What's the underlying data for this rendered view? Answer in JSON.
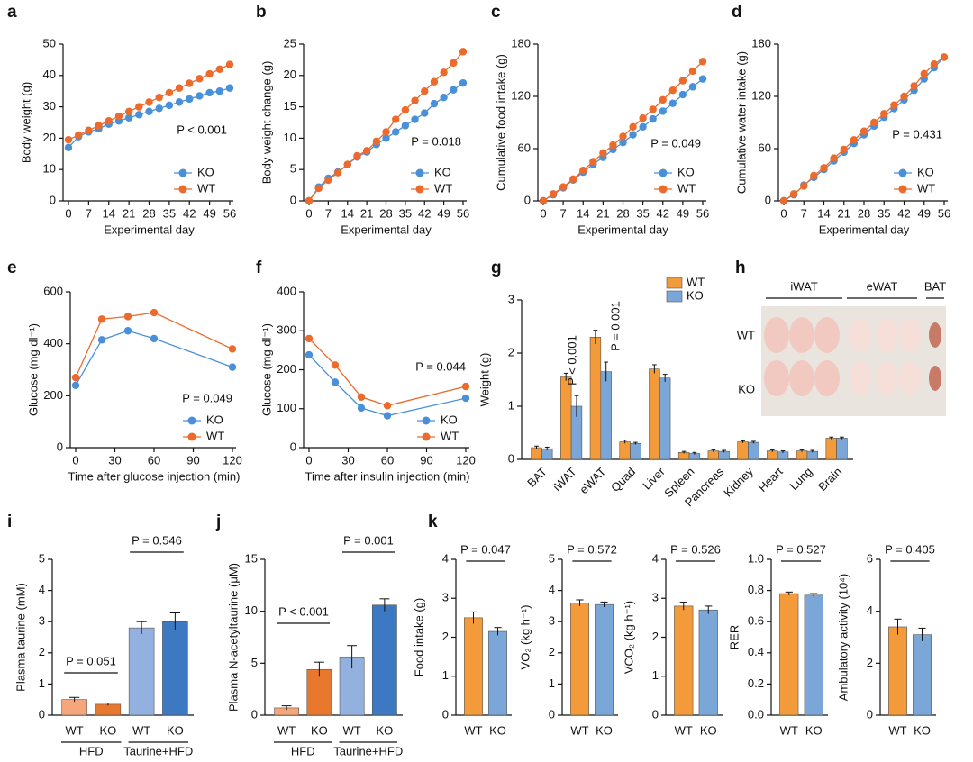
{
  "chart_data": [
    {
      "type": "line",
      "panel": "a",
      "xlabel": "Experimental day",
      "ylabel": "Body weight (g)",
      "annotation": "P < 0.001",
      "x": [
        0,
        3.5,
        7,
        10.5,
        14,
        17.5,
        21,
        24.5,
        28,
        31.5,
        35,
        38.5,
        42,
        45.5,
        49,
        52.5,
        56
      ],
      "xlim": [
        0,
        56
      ],
      "xticks": [
        0,
        7,
        14,
        21,
        28,
        35,
        42,
        49,
        56
      ],
      "ylim": [
        0,
        50
      ],
      "yticks": [
        0,
        10,
        20,
        30,
        40,
        50
      ],
      "legend": "lower right",
      "series": [
        {
          "name": "KO",
          "color": "#4a90d9",
          "values": [
            17,
            20.5,
            22,
            23,
            24.5,
            25.5,
            26.5,
            27.5,
            28.5,
            29.5,
            30.5,
            31.5,
            32.5,
            33.5,
            34.5,
            35,
            36
          ]
        },
        {
          "name": "WT",
          "color": "#ec6a2c",
          "values": [
            19.5,
            21,
            22.5,
            24,
            25.5,
            27,
            28.5,
            30,
            31.5,
            33,
            34.5,
            36,
            37.5,
            39,
            40.5,
            42,
            43.5
          ]
        }
      ]
    },
    {
      "type": "line",
      "panel": "b",
      "xlabel": "Experimental day",
      "ylabel": "Body weight change (g)",
      "annotation": "P = 0.018",
      "x": [
        0,
        3.5,
        7,
        10.5,
        14,
        17.5,
        21,
        24.5,
        28,
        31.5,
        35,
        38.5,
        42,
        45.5,
        49,
        52.5,
        56
      ],
      "xlim": [
        0,
        56
      ],
      "xticks": [
        0,
        7,
        14,
        21,
        28,
        35,
        42,
        49,
        56
      ],
      "ylim": [
        0,
        25
      ],
      "yticks": [
        0,
        5,
        10,
        15,
        20,
        25
      ],
      "legend": "lower right",
      "series": [
        {
          "name": "KO",
          "color": "#4a90d9",
          "values": [
            0,
            2.2,
            3.6,
            4.6,
            5.8,
            7,
            7.8,
            9,
            10,
            11,
            12,
            13,
            14,
            15.5,
            16.5,
            17.7,
            18.8
          ]
        },
        {
          "name": "WT",
          "color": "#ec6a2c",
          "values": [
            0,
            2,
            3.3,
            4.5,
            5.8,
            7.2,
            8,
            9.5,
            11,
            13,
            14.5,
            16,
            17.5,
            19,
            20.5,
            22,
            23.8
          ]
        }
      ]
    },
    {
      "type": "line",
      "panel": "c",
      "xlabel": "Experimental day",
      "ylabel": "Cumulative food intake (g)",
      "annotation": "P = 0.049",
      "x": [
        0,
        3.5,
        7,
        10.5,
        14,
        17.5,
        21,
        24.5,
        28,
        31.5,
        35,
        38.5,
        42,
        45.5,
        49,
        52.5,
        56
      ],
      "xlim": [
        0,
        56
      ],
      "xticks": [
        0,
        7,
        14,
        21,
        28,
        35,
        42,
        49,
        56
      ],
      "ylim": [
        0,
        180
      ],
      "yticks": [
        0,
        60,
        120,
        180
      ],
      "legend": "lower right",
      "series": [
        {
          "name": "KO",
          "color": "#4a90d9",
          "values": [
            0,
            7,
            15,
            24,
            33,
            42,
            50,
            59,
            67,
            76,
            85,
            94,
            103,
            112,
            122,
            131,
            140
          ]
        },
        {
          "name": "WT",
          "color": "#ec6a2c",
          "values": [
            0,
            8,
            16,
            25,
            35,
            45,
            55,
            64,
            74,
            85,
            95,
            105,
            116,
            127,
            138,
            149,
            160
          ]
        }
      ]
    },
    {
      "type": "line",
      "panel": "d",
      "xlabel": "Experimental day",
      "ylabel": "Cumulative water intake (g)",
      "annotation": "P = 0.431",
      "x": [
        0,
        3.5,
        7,
        10.5,
        14,
        17.5,
        21,
        24.5,
        28,
        31.5,
        35,
        38.5,
        42,
        45.5,
        49,
        52.5,
        56
      ],
      "xlim": [
        0,
        56
      ],
      "xticks": [
        0,
        7,
        14,
        21,
        28,
        35,
        42,
        49,
        56
      ],
      "ylim": [
        0,
        180
      ],
      "yticks": [
        0,
        60,
        120,
        180
      ],
      "legend": "lower right",
      "series": [
        {
          "name": "KO",
          "color": "#4a90d9",
          "values": [
            0,
            7,
            18,
            27,
            36,
            46,
            56,
            66,
            76,
            86,
            96,
            106,
            116,
            127,
            140,
            153,
            165
          ]
        },
        {
          "name": "WT",
          "color": "#ec6a2c",
          "values": [
            0,
            8,
            17,
            29,
            38,
            49,
            59,
            70,
            80,
            90,
            100,
            110,
            120,
            132,
            146,
            157,
            165
          ]
        }
      ]
    },
    {
      "type": "line",
      "panel": "e",
      "xlabel": "Time after glucose injection (min)",
      "ylabel": "Glucose (mg dl⁻¹)",
      "annotation": "P = 0.049",
      "x": [
        0,
        20,
        40,
        60,
        120
      ],
      "xlim": [
        0,
        120
      ],
      "xticks": [
        0,
        30,
        60,
        90,
        120
      ],
      "ylim": [
        0,
        600
      ],
      "yticks": [
        0,
        200,
        400,
        600
      ],
      "legend": "lower right",
      "series": [
        {
          "name": "KO",
          "color": "#4a90d9",
          "values": [
            240,
            415,
            450,
            420,
            310
          ]
        },
        {
          "name": "WT",
          "color": "#ec6a2c",
          "values": [
            270,
            495,
            505,
            520,
            380
          ]
        }
      ]
    },
    {
      "type": "line",
      "panel": "f",
      "xlabel": "Time after insulin injection (min)",
      "ylabel": "Glucose (mg dl⁻¹)",
      "annotation": "P = 0.044",
      "x": [
        0,
        20,
        40,
        60,
        120
      ],
      "xlim": [
        0,
        120
      ],
      "xticks": [
        0,
        30,
        60,
        90,
        120
      ],
      "ylim": [
        0,
        400
      ],
      "yticks": [
        0,
        100,
        200,
        300,
        400
      ],
      "legend": "lower right",
      "series": [
        {
          "name": "KO",
          "color": "#4a90d9",
          "values": [
            238,
            168,
            102,
            82,
            127
          ]
        },
        {
          "name": "WT",
          "color": "#ec6a2c",
          "values": [
            280,
            212,
            130,
            108,
            157
          ]
        }
      ]
    },
    {
      "type": "bar",
      "panel": "g",
      "ylabel": "Weight (g)",
      "annotations": [
        "P < 0.001",
        "P = 0.001"
      ],
      "categories": [
        "BAT",
        "iWAT",
        "eWAT",
        "Quad",
        "Liver",
        "Spleen",
        "Pancreas",
        "Kidney",
        "Heart",
        "Lung",
        "Brain"
      ],
      "ylim": [
        0,
        3
      ],
      "yticks": [
        0,
        1,
        2,
        3
      ],
      "legend": "upper right",
      "series": [
        {
          "name": "WT",
          "color": "#f39a3a",
          "values": [
            0.22,
            1.55,
            2.3,
            0.33,
            1.7,
            0.13,
            0.16,
            0.33,
            0.16,
            0.16,
            0.4
          ],
          "errors": [
            0.03,
            0.07,
            0.13,
            0.03,
            0.08,
            0.02,
            0.02,
            0.02,
            0.02,
            0.02,
            0.02
          ]
        },
        {
          "name": "KO",
          "color": "#7aa6d8",
          "values": [
            0.2,
            1.0,
            1.65,
            0.3,
            1.53,
            0.11,
            0.15,
            0.32,
            0.14,
            0.15,
            0.4
          ],
          "errors": [
            0.03,
            0.2,
            0.18,
            0.02,
            0.07,
            0.02,
            0.02,
            0.02,
            0.02,
            0.02,
            0.02
          ]
        }
      ]
    },
    {
      "type": "image",
      "panel": "h",
      "column_labels": [
        "iWAT",
        "eWAT",
        "BAT"
      ],
      "row_labels": [
        "WT",
        "KO"
      ]
    },
    {
      "type": "bar",
      "panel": "i",
      "ylabel": "Plasma taurine (mM)",
      "annotations": [
        "P = 0.051",
        "P = 0.546"
      ],
      "categories": [
        "WT",
        "KO",
        "WT",
        "KO"
      ],
      "groups": [
        "HFD",
        "Taurine+HFD"
      ],
      "colors": [
        "#f6a67b",
        "#e9782f",
        "#92b1de",
        "#3d78c3"
      ],
      "values": [
        0.5,
        0.35,
        2.8,
        3.0
      ],
      "errors": [
        0.07,
        0.04,
        0.2,
        0.28
      ],
      "ylim": [
        0,
        5
      ],
      "yticks": [
        0,
        1,
        2,
        3,
        4,
        5
      ]
    },
    {
      "type": "bar",
      "panel": "j",
      "ylabel": "Plasma N-acetyltaurine (μM)",
      "annotations": [
        "P < 0.001",
        "P = 0.001"
      ],
      "categories": [
        "WT",
        "KO",
        "WT",
        "KO"
      ],
      "groups": [
        "HFD",
        "Taurine+HFD"
      ],
      "colors": [
        "#f6a67b",
        "#e9782f",
        "#92b1de",
        "#3d78c3"
      ],
      "values": [
        0.7,
        4.4,
        5.6,
        10.6
      ],
      "errors": [
        0.2,
        0.7,
        1.1,
        0.6
      ],
      "ylim": [
        0,
        15
      ],
      "yticks": [
        0,
        5,
        10,
        15
      ]
    },
    {
      "type": "bar",
      "panel": "k",
      "ylabel": "Food intake (g)",
      "annotations": [
        "P = 0.047"
      ],
      "categories": [
        "WT",
        "KO"
      ],
      "colors": [
        "#f39a3a",
        "#7aa6d8"
      ],
      "values": [
        2.5,
        2.15
      ],
      "errors": [
        0.15,
        0.1
      ],
      "ylim": [
        0,
        4
      ],
      "yticks": [
        0,
        1,
        2,
        3,
        4
      ]
    },
    {
      "type": "bar",
      "ylabel": "VO₂ (kg h⁻¹)",
      "annotations": [
        "P = 0.572"
      ],
      "categories": [
        "WT",
        "KO"
      ],
      "colors": [
        "#f39a3a",
        "#7aa6d8"
      ],
      "values": [
        3.6,
        3.55
      ],
      "errors": [
        0.1,
        0.08
      ],
      "ylim": [
        0,
        5
      ],
      "yticks": [
        0,
        1,
        2,
        3,
        4,
        5
      ]
    },
    {
      "type": "bar",
      "ylabel": "VCO₂ (kg h⁻¹)",
      "annotations": [
        "P = 0.526"
      ],
      "categories": [
        "WT",
        "KO"
      ],
      "colors": [
        "#f39a3a",
        "#7aa6d8"
      ],
      "values": [
        2.8,
        2.7
      ],
      "errors": [
        0.1,
        0.1
      ],
      "ylim": [
        0,
        4
      ],
      "yticks": [
        0,
        1,
        2,
        3,
        4
      ]
    },
    {
      "type": "bar",
      "ylabel": "RER",
      "annotations": [
        "P = 0.527"
      ],
      "categories": [
        "WT",
        "KO"
      ],
      "colors": [
        "#f39a3a",
        "#7aa6d8"
      ],
      "values": [
        0.78,
        0.77
      ],
      "errors": [
        0.01,
        0.01
      ],
      "ylim": [
        0,
        1
      ],
      "yticks": [
        {
          "value": 0,
          "label": "0.0"
        },
        0.2,
        0.4,
        0.6,
        0.8,
        {
          "value": 1,
          "label": "1.0"
        }
      ]
    },
    {
      "type": "bar",
      "ylabel": "Ambulatory activity (10⁴)",
      "annotations": [
        "P = 0.405"
      ],
      "categories": [
        "WT",
        "KO"
      ],
      "colors": [
        "#f39a3a",
        "#7aa6d8"
      ],
      "values": [
        3.4,
        3.1
      ],
      "errors": [
        0.3,
        0.25
      ],
      "ylim": [
        0,
        6
      ],
      "yticks": [
        0,
        2,
        4,
        6
      ]
    }
  ]
}
